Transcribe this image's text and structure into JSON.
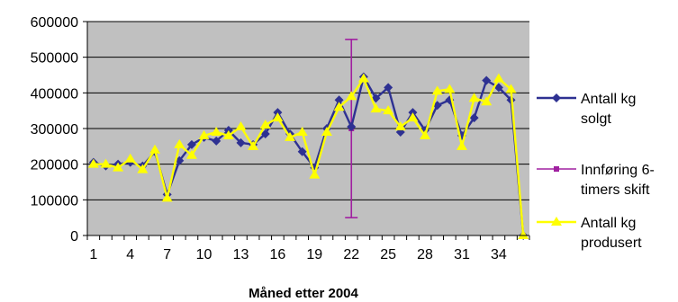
{
  "chart_data": {
    "type": "line",
    "title": "",
    "xlabel": "Måned etter 2004",
    "ylabel": "",
    "ylim": [
      0,
      600000
    ],
    "yticks": [
      "0",
      "100000",
      "200000",
      "300000",
      "400000",
      "500000",
      "600000"
    ],
    "xlim": [
      1,
      36
    ],
    "xticks": [
      "1",
      "4",
      "7",
      "10",
      "13",
      "16",
      "19",
      "22",
      "25",
      "28",
      "31",
      "34"
    ],
    "grid": true,
    "plot_background": "#c0c0c0",
    "legend_position": "right",
    "series": [
      {
        "name": "Antall kg solgt",
        "color": "#2e3192",
        "marker": "diamond",
        "x": [
          1,
          2,
          3,
          4,
          5,
          6,
          7,
          8,
          9,
          10,
          11,
          12,
          13,
          14,
          15,
          16,
          17,
          18,
          19,
          20,
          21,
          22,
          23,
          24,
          25,
          26,
          27,
          28,
          29,
          30,
          31,
          32,
          33,
          34,
          35,
          36
        ],
        "values": [
          205000,
          195000,
          200000,
          205000,
          195000,
          235000,
          115000,
          210000,
          255000,
          275000,
          265000,
          295000,
          260000,
          255000,
          285000,
          345000,
          285000,
          235000,
          190000,
          300000,
          380000,
          305000,
          445000,
          385000,
          415000,
          290000,
          345000,
          295000,
          365000,
          380000,
          280000,
          330000,
          435000,
          415000,
          380000,
          0
        ]
      },
      {
        "name": "Innføring 6-timers skift",
        "color": "#a020a0",
        "marker": "square",
        "x": [
          22,
          22,
          22
        ],
        "values": [
          50000,
          300000,
          550000
        ]
      },
      {
        "name": "Antall kg produsert",
        "color": "#ffff00",
        "marker": "triangle",
        "x": [
          1,
          2,
          3,
          4,
          5,
          6,
          7,
          8,
          9,
          10,
          11,
          12,
          13,
          14,
          15,
          16,
          17,
          18,
          19,
          20,
          21,
          22,
          23,
          24,
          25,
          26,
          27,
          28,
          29,
          30,
          31,
          32,
          33,
          34,
          35,
          36
        ],
        "values": [
          200000,
          200000,
          190000,
          215000,
          185000,
          240000,
          105000,
          255000,
          225000,
          280000,
          290000,
          280000,
          305000,
          250000,
          310000,
          330000,
          275000,
          290000,
          170000,
          290000,
          360000,
          390000,
          440000,
          355000,
          350000,
          305000,
          330000,
          280000,
          405000,
          410000,
          250000,
          385000,
          375000,
          440000,
          410000,
          0
        ]
      }
    ],
    "legend": [
      {
        "lines": [
          "Antall kg",
          "solgt"
        ]
      },
      {
        "lines": [
          "Innføring 6-",
          "timers skift"
        ]
      },
      {
        "lines": [
          "Antall kg",
          "produsert"
        ]
      }
    ]
  }
}
